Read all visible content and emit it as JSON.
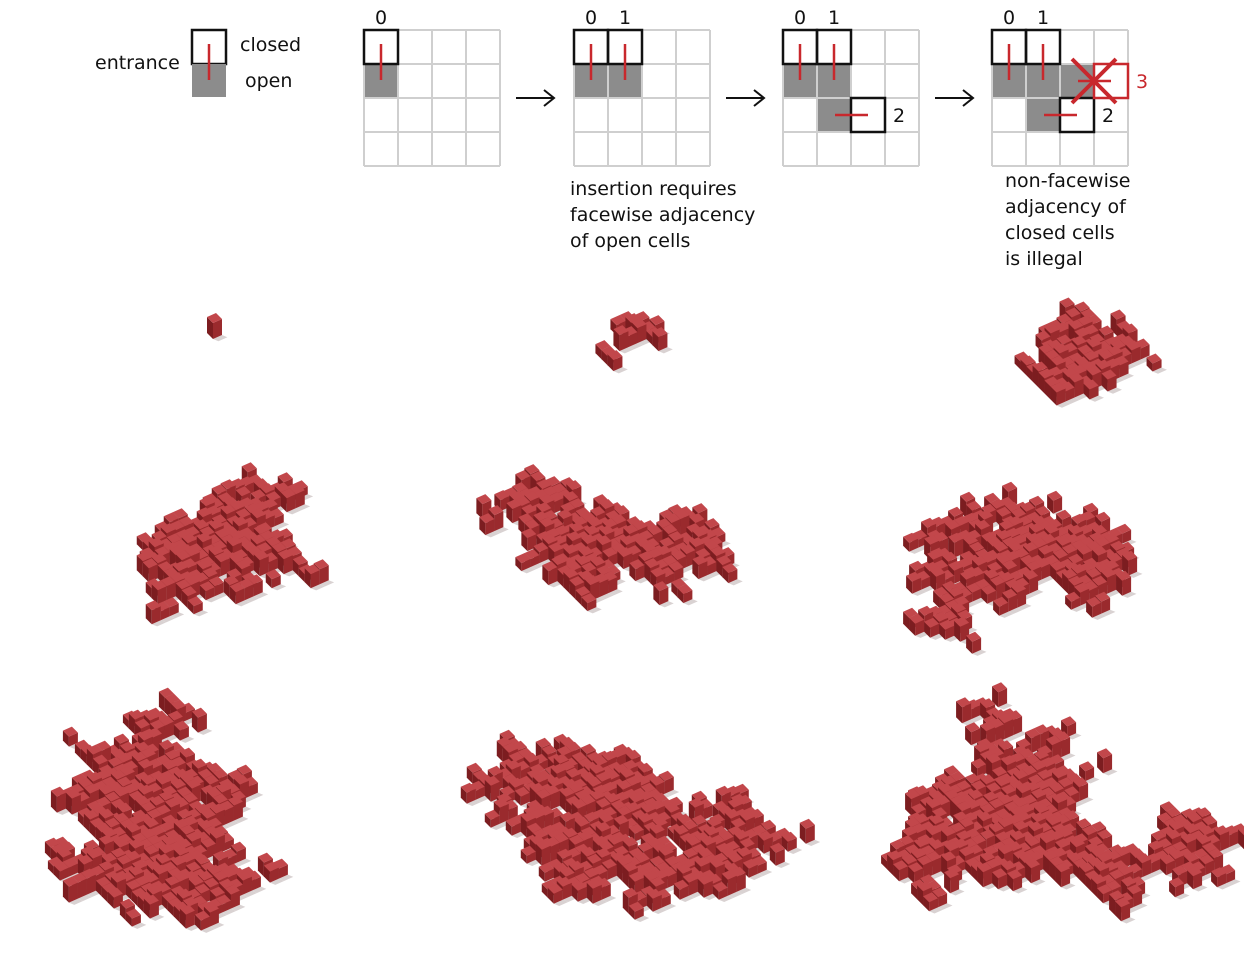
{
  "legend": {
    "entrance": "entrance",
    "closed": "closed",
    "open": "open"
  },
  "steps": [
    {
      "labels": [
        "0"
      ]
    },
    {
      "labels": [
        "0",
        "1"
      ],
      "caption": [
        "insertion requires",
        "facewise adjacency",
        "of open cells"
      ]
    },
    {
      "labels": [
        "0",
        "1",
        "2"
      ]
    },
    {
      "labels": [
        "0",
        "1",
        "2",
        "3"
      ],
      "caption": [
        "non-facewise",
        "adjacency of",
        "closed cells",
        "is illegal"
      ]
    }
  ]
}
